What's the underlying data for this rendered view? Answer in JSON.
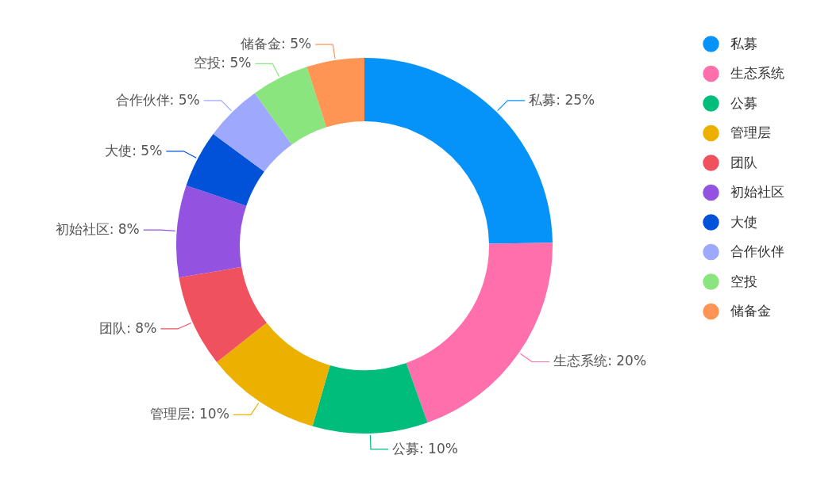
{
  "chart_data": {
    "type": "donut",
    "categories": [
      "私募",
      "生态系统",
      "公募",
      "管理层",
      "团队",
      "初始社区",
      "大使",
      "合作伙伴",
      "空投",
      "储备金"
    ],
    "values": [
      25,
      20,
      10,
      10,
      8,
      8,
      5,
      5,
      5,
      5
    ],
    "colors": [
      "#0593f9",
      "#ff6fab",
      "#00bd7c",
      "#ebb000",
      "#f0515f",
      "#9452e0",
      "#0152d8",
      "#9ea8fd",
      "#8ae57f",
      "#ff9555"
    ],
    "value_labels": [
      "私募: 25%",
      "生态系统: 20%",
      "公募: 10%",
      "管理层: 10%",
      "团队: 8%",
      "初始社区: 8%",
      "大使: 5%",
      "合作伙伴: 5%",
      "空投: 5%",
      "储备金: 5%"
    ],
    "legend": "top right"
  }
}
